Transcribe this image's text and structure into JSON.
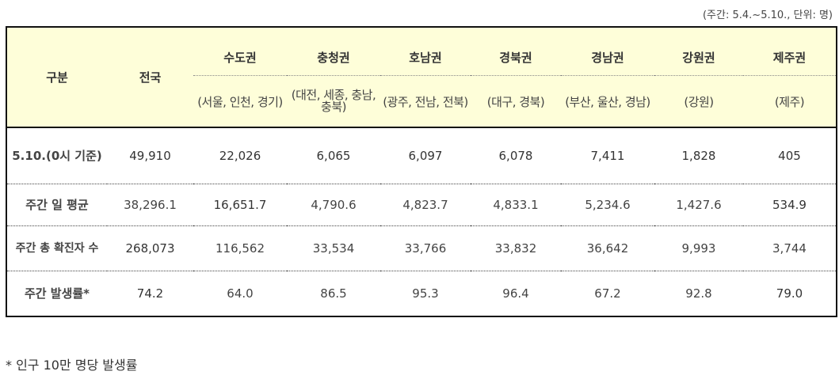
{
  "unit_note": "(주간: 5.4.~5.10., 단위: 명)",
  "header": {
    "category": "구분",
    "national": "전국",
    "regions": [
      {
        "name": "수도권",
        "sub": "(서울, 인천, 경기)"
      },
      {
        "name": "충청권",
        "sub": "(대전, 세종, 충남, 충북)"
      },
      {
        "name": "호남권",
        "sub": "(광주, 전남, 전북)"
      },
      {
        "name": "경북권",
        "sub": "(대구, 경북)"
      },
      {
        "name": "경남권",
        "sub": "(부산, 울산, 경남)"
      },
      {
        "name": "강원권",
        "sub": "(강원)"
      },
      {
        "name": "제주권",
        "sub": "(제주)"
      }
    ]
  },
  "rows": [
    {
      "label": "5.10.(0시 기준)",
      "values": [
        "49,910",
        "22,026",
        "6,065",
        "6,097",
        "6,078",
        "7,411",
        "1,828",
        "405"
      ]
    },
    {
      "label": "주간 일 평균",
      "values": [
        "38,296.1",
        "16,651.7",
        "4,790.6",
        "4,823.7",
        "4,833.1",
        "5,234.6",
        "1,427.6",
        "534.9"
      ]
    },
    {
      "label": "주간 총 확진자 수",
      "values": [
        "268,073",
        "116,562",
        "33,534",
        "33,766",
        "33,832",
        "36,642",
        "9,993",
        "3,744"
      ]
    },
    {
      "label": "주간 발생률*",
      "values": [
        "74.2",
        "64.0",
        "86.5",
        "95.3",
        "96.4",
        "67.2",
        "92.8",
        "79.0"
      ]
    }
  ],
  "footnote": "* 인구 10만 명당 발생률"
}
